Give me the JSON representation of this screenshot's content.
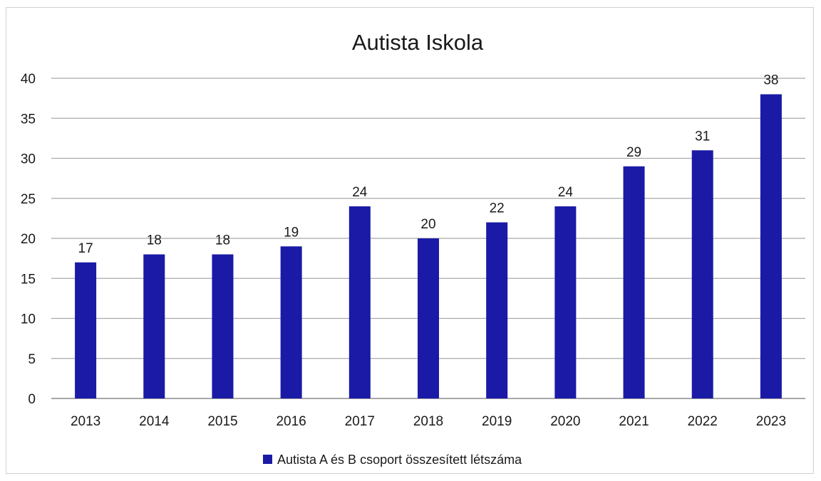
{
  "chart_data": {
    "type": "bar",
    "title": "Autista Iskola",
    "xlabel": "",
    "ylabel": "",
    "categories": [
      "2013",
      "2014",
      "2015",
      "2016",
      "2017",
      "2018",
      "2019",
      "2020",
      "2021",
      "2022",
      "2023"
    ],
    "series": [
      {
        "name": "Autista A és B csoport összesített létszáma",
        "values": [
          17,
          18,
          18,
          19,
          24,
          20,
          22,
          24,
          29,
          31,
          38
        ],
        "color": "#1a1aa6"
      }
    ],
    "ylim": [
      0,
      40
    ],
    "yticks": [
      "0",
      "5",
      "10",
      "15",
      "20",
      "25",
      "30",
      "35",
      "40"
    ],
    "grid": true,
    "data_labels": true,
    "legend_position": "bottom"
  }
}
